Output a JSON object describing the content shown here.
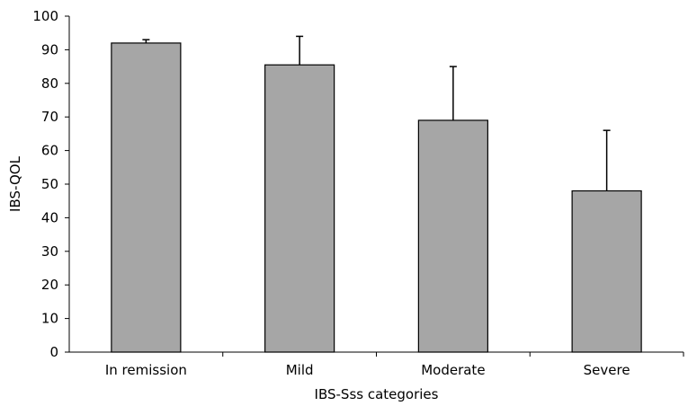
{
  "chart_data": {
    "type": "bar",
    "title": "",
    "xlabel": "IBS-Sss categories",
    "ylabel": "IBS-QOL",
    "categories": [
      "In remission",
      "Mild",
      "Moderate",
      "Severe"
    ],
    "values": [
      92,
      85.5,
      69,
      48
    ],
    "error_upper": [
      1,
      8.5,
      16,
      18
    ],
    "ylim": [
      0,
      100
    ],
    "yticks": [
      0,
      10,
      20,
      30,
      40,
      50,
      60,
      70,
      80,
      90,
      100
    ],
    "grid": false,
    "legend": "none",
    "bar_color": "#a6a6a6",
    "bar_edge_color": "#000000"
  }
}
